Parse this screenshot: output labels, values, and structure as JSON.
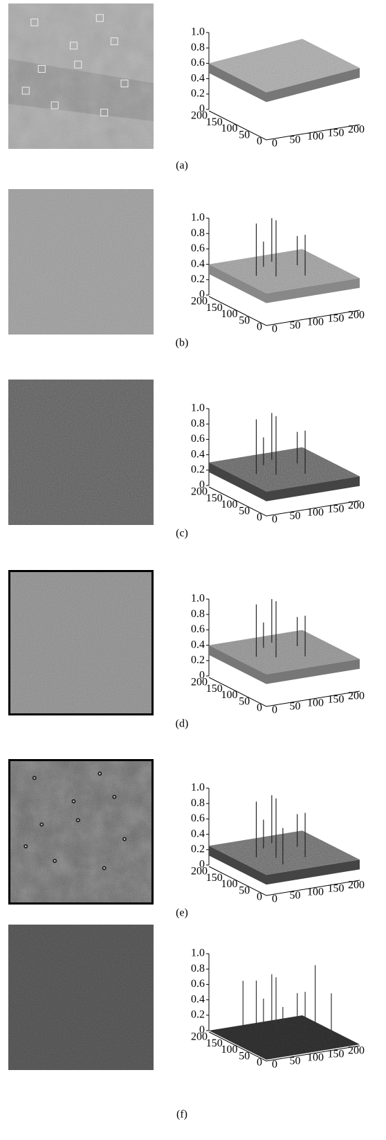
{
  "axes": {
    "zticks": [
      0,
      0.2,
      0.4,
      0.6,
      0.8,
      {
        "value": 1,
        "label": "1.0"
      }
    ],
    "left_ticks": [
      200,
      150,
      100,
      50,
      0
    ],
    "right_ticks": [
      0,
      50,
      100,
      150,
      200
    ]
  },
  "panels": [
    {
      "label": "(a)"
    },
    {
      "label": "(b)"
    },
    {
      "label": "(c)"
    },
    {
      "label": "(d)"
    },
    {
      "label": "(e)"
    },
    {
      "label": "(f)"
    }
  ]
}
